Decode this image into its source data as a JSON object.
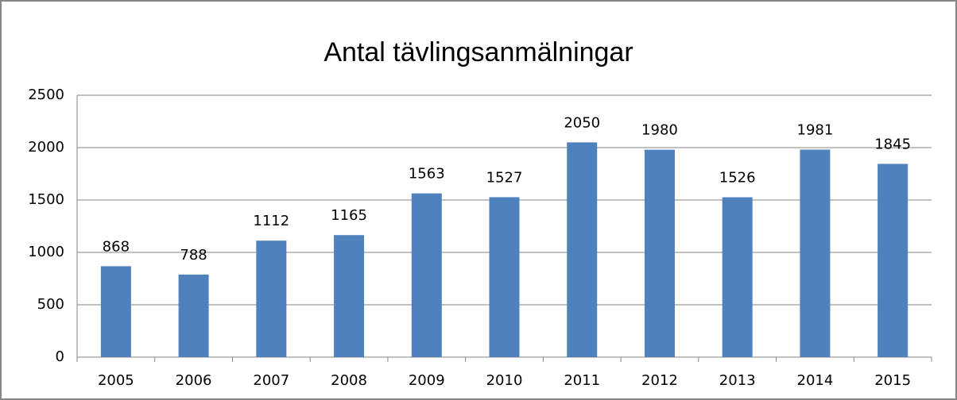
{
  "chart_data": {
    "type": "bar",
    "title": "Antal tävlingsanmälningar",
    "categories": [
      "2005",
      "2006",
      "2007",
      "2008",
      "2009",
      "2010",
      "2011",
      "2012",
      "2013",
      "2014",
      "2015"
    ],
    "values": [
      868,
      788,
      1112,
      1165,
      1563,
      1527,
      2050,
      1980,
      1526,
      1981,
      1845
    ],
    "color": "#4f81bd",
    "ylim": [
      0,
      2500
    ],
    "yticks": [
      0,
      500,
      1000,
      1500,
      2000,
      2500
    ],
    "grid": true
  }
}
